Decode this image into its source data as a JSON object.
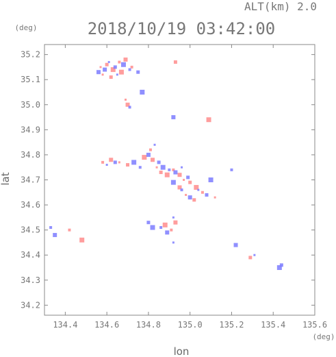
{
  "chart_data": {
    "type": "scatter",
    "title": "2018/10/19 03:42:00",
    "alt_label": "ALT(km) 2.0",
    "xlabel": "lon",
    "ylabel": "lat",
    "x_unit": "(deg)",
    "y_unit": "(deg)",
    "xlim": [
      134.3,
      135.6
    ],
    "ylim": [
      34.16,
      35.24
    ],
    "xticks": [
      "134.4",
      "134.6",
      "134.8",
      "135.0",
      "135.2",
      "135.4",
      "135.6"
    ],
    "yticks": [
      "34.2",
      "34.3",
      "34.4",
      "34.5",
      "34.6",
      "34.7",
      "34.8",
      "34.9",
      "35.0",
      "35.1",
      "35.2"
    ],
    "colors": {
      "positive": "#ff8c8c",
      "negative": "#7d7dff",
      "axis": "#888888"
    },
    "series": [
      {
        "values": [
          [
            134.57,
            35.15
          ],
          [
            134.6,
            35.16
          ],
          [
            134.63,
            35.14
          ],
          [
            134.66,
            35.17
          ],
          [
            134.69,
            35.18
          ],
          [
            134.58,
            35.12
          ],
          [
            134.62,
            35.11
          ],
          [
            134.67,
            35.13
          ],
          [
            134.72,
            35.15
          ],
          [
            134.7,
            35.0
          ],
          [
            134.69,
            35.02
          ],
          [
            134.93,
            35.17
          ],
          [
            135.09,
            34.94
          ],
          [
            134.58,
            34.77
          ],
          [
            134.62,
            34.78
          ],
          [
            134.66,
            34.77
          ],
          [
            134.7,
            34.76
          ],
          [
            134.78,
            34.79
          ],
          [
            134.81,
            34.82
          ],
          [
            134.82,
            34.78
          ],
          [
            134.84,
            34.75
          ],
          [
            134.86,
            34.73
          ],
          [
            134.89,
            34.72
          ],
          [
            134.92,
            34.74
          ],
          [
            134.95,
            34.72
          ],
          [
            134.97,
            34.7
          ],
          [
            135.0,
            34.69
          ],
          [
            135.03,
            34.67
          ],
          [
            135.06,
            34.65
          ],
          [
            134.95,
            34.67
          ],
          [
            134.98,
            34.64
          ],
          [
            135.02,
            34.62
          ],
          [
            134.88,
            34.52
          ],
          [
            134.91,
            34.5
          ],
          [
            134.93,
            34.53
          ],
          [
            135.12,
            34.63
          ],
          [
            135.29,
            34.39
          ],
          [
            134.48,
            34.46
          ],
          [
            134.42,
            34.5
          ]
        ]
      },
      {
        "values": [
          [
            134.59,
            35.14
          ],
          [
            134.61,
            35.17
          ],
          [
            134.64,
            35.15
          ],
          [
            134.68,
            35.16
          ],
          [
            134.71,
            35.14
          ],
          [
            134.56,
            35.13
          ],
          [
            134.65,
            35.12
          ],
          [
            134.75,
            35.13
          ],
          [
            134.77,
            35.05
          ],
          [
            134.71,
            34.99
          ],
          [
            134.92,
            34.95
          ],
          [
            134.6,
            34.76
          ],
          [
            134.64,
            34.77
          ],
          [
            134.73,
            34.77
          ],
          [
            134.76,
            34.75
          ],
          [
            134.8,
            34.8
          ],
          [
            134.83,
            34.84
          ],
          [
            134.85,
            34.77
          ],
          [
            134.87,
            34.75
          ],
          [
            134.9,
            34.74
          ],
          [
            134.93,
            34.73
          ],
          [
            134.96,
            34.75
          ],
          [
            134.99,
            34.71
          ],
          [
            134.92,
            34.69
          ],
          [
            134.96,
            34.66
          ],
          [
            135.0,
            34.63
          ],
          [
            135.04,
            34.66
          ],
          [
            135.08,
            34.64
          ],
          [
            135.1,
            34.7
          ],
          [
            134.86,
            34.51
          ],
          [
            134.89,
            34.49
          ],
          [
            134.92,
            34.55
          ],
          [
            134.8,
            34.53
          ],
          [
            134.82,
            34.51
          ],
          [
            135.2,
            34.74
          ],
          [
            135.22,
            34.44
          ],
          [
            135.31,
            34.4
          ],
          [
            135.44,
            34.36
          ],
          [
            135.43,
            34.35
          ],
          [
            134.33,
            34.51
          ],
          [
            134.35,
            34.48
          ],
          [
            134.92,
            34.45
          ]
        ]
      }
    ]
  }
}
